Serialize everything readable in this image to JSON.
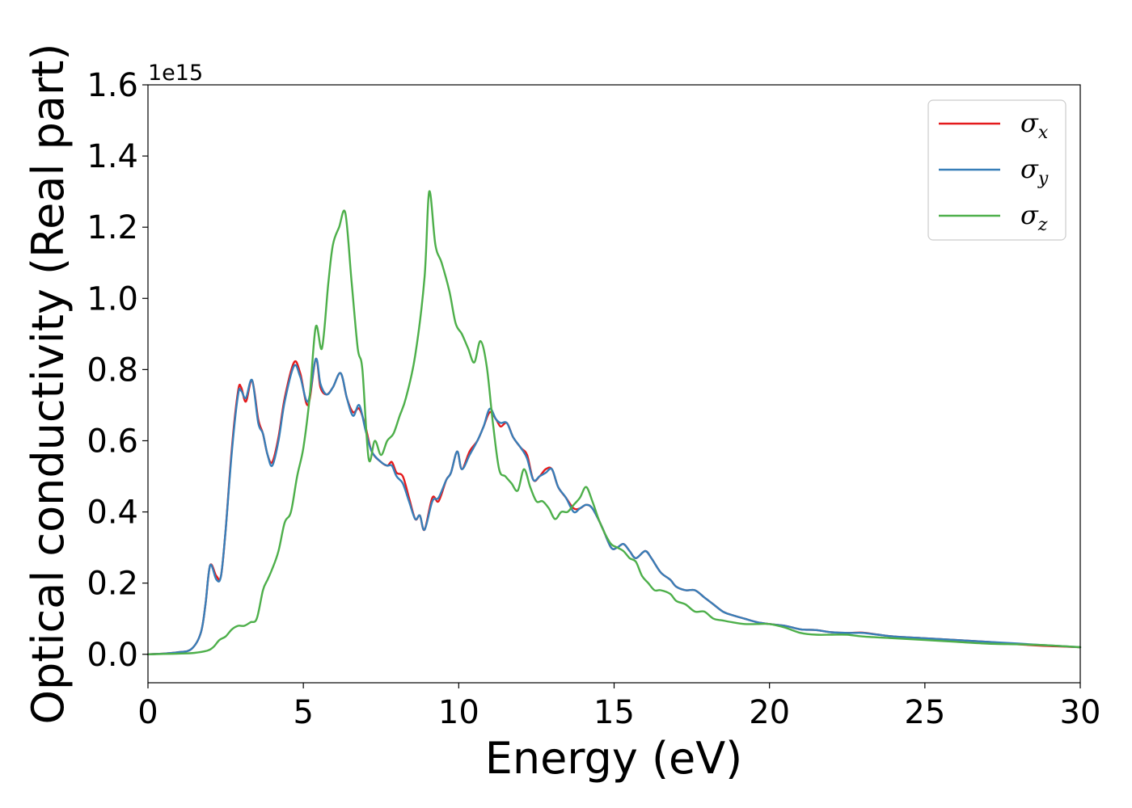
{
  "chart_data": {
    "type": "line",
    "title": "",
    "xlabel": "Energy (eV)",
    "ylabel": "Optical conductivity (Real part)",
    "y_offset_label": "1e15",
    "xlim": [
      0,
      30
    ],
    "ylim": [
      -0.08,
      1.6
    ],
    "x_ticks": [
      0,
      5,
      10,
      15,
      20,
      25,
      30
    ],
    "x_tick_labels": [
      "0",
      "5",
      "10",
      "15",
      "20",
      "25",
      "30"
    ],
    "y_ticks": [
      0.0,
      0.2,
      0.4,
      0.6,
      0.8,
      1.0,
      1.2,
      1.4,
      1.6
    ],
    "y_tick_labels": [
      "0.0",
      "0.2",
      "0.4",
      "0.6",
      "0.8",
      "1.0",
      "1.2",
      "1.4",
      "1.6"
    ],
    "grid": false,
    "legend_position": "top-right",
    "series": [
      {
        "name": "σx",
        "symbol": "σ",
        "subscript": "x",
        "color": "#e41a1c",
        "x": [
          0,
          0.5,
          1.0,
          1.4,
          1.7,
          1.85,
          2.0,
          2.2,
          2.35,
          2.5,
          2.7,
          2.9,
          3.0,
          3.15,
          3.35,
          3.55,
          3.7,
          3.85,
          4.0,
          4.2,
          4.4,
          4.7,
          4.9,
          5.15,
          5.4,
          5.55,
          5.75,
          5.95,
          6.2,
          6.4,
          6.6,
          6.8,
          7.0,
          7.2,
          7.5,
          7.7,
          7.85,
          8.0,
          8.2,
          8.4,
          8.6,
          8.75,
          8.9,
          9.15,
          9.35,
          9.6,
          9.75,
          9.95,
          10.1,
          10.35,
          10.6,
          10.8,
          11.0,
          11.2,
          11.35,
          11.55,
          11.75,
          12.0,
          12.2,
          12.4,
          12.6,
          12.8,
          13.0,
          13.2,
          13.45,
          13.7,
          13.9,
          14.1,
          14.3,
          14.6,
          14.9,
          15.1,
          15.3,
          15.5,
          15.7,
          16.0,
          16.2,
          16.5,
          16.8,
          17.0,
          17.3,
          17.6,
          17.9,
          18.2,
          18.5,
          18.8,
          19.2,
          19.6,
          20.0,
          20.5,
          21.0,
          21.5,
          22.0,
          22.5,
          23.0,
          23.5,
          24.0,
          25.0,
          26.0,
          27.0,
          28.0,
          29.0,
          30.0
        ],
        "values": [
          0.0,
          0.002,
          0.006,
          0.015,
          0.06,
          0.14,
          0.25,
          0.22,
          0.22,
          0.35,
          0.58,
          0.74,
          0.75,
          0.71,
          0.77,
          0.66,
          0.62,
          0.56,
          0.54,
          0.61,
          0.72,
          0.82,
          0.79,
          0.7,
          0.83,
          0.75,
          0.73,
          0.75,
          0.79,
          0.72,
          0.68,
          0.69,
          0.64,
          0.57,
          0.54,
          0.53,
          0.54,
          0.51,
          0.5,
          0.44,
          0.38,
          0.39,
          0.35,
          0.44,
          0.43,
          0.49,
          0.51,
          0.57,
          0.52,
          0.57,
          0.6,
          0.64,
          0.68,
          0.66,
          0.64,
          0.65,
          0.61,
          0.58,
          0.56,
          0.49,
          0.5,
          0.52,
          0.52,
          0.47,
          0.44,
          0.41,
          0.41,
          0.42,
          0.41,
          0.36,
          0.3,
          0.3,
          0.31,
          0.29,
          0.27,
          0.29,
          0.27,
          0.23,
          0.21,
          0.19,
          0.18,
          0.18,
          0.16,
          0.14,
          0.12,
          0.11,
          0.1,
          0.09,
          0.085,
          0.08,
          0.07,
          0.068,
          0.062,
          0.06,
          0.061,
          0.055,
          0.05,
          0.045,
          0.04,
          0.035,
          0.028,
          0.023,
          0.02
        ]
      },
      {
        "name": "σy",
        "symbol": "σ",
        "subscript": "y",
        "color": "#377eb8",
        "x": [
          0,
          0.5,
          1.0,
          1.4,
          1.7,
          1.85,
          2.0,
          2.2,
          2.35,
          2.5,
          2.7,
          2.9,
          3.0,
          3.15,
          3.35,
          3.55,
          3.7,
          3.85,
          4.0,
          4.2,
          4.4,
          4.7,
          4.9,
          5.15,
          5.4,
          5.55,
          5.75,
          5.95,
          6.2,
          6.4,
          6.6,
          6.8,
          7.0,
          7.2,
          7.5,
          7.7,
          7.85,
          8.0,
          8.2,
          8.4,
          8.6,
          8.75,
          8.9,
          9.15,
          9.35,
          9.6,
          9.75,
          9.95,
          10.1,
          10.35,
          10.6,
          10.8,
          11.0,
          11.2,
          11.35,
          11.55,
          11.75,
          12.0,
          12.2,
          12.4,
          12.6,
          12.8,
          13.0,
          13.2,
          13.45,
          13.7,
          13.9,
          14.1,
          14.3,
          14.6,
          14.9,
          15.1,
          15.3,
          15.5,
          15.7,
          16.0,
          16.2,
          16.5,
          16.8,
          17.0,
          17.3,
          17.6,
          17.9,
          18.2,
          18.5,
          18.8,
          19.2,
          19.6,
          20.0,
          20.5,
          21.0,
          21.5,
          22.0,
          22.5,
          23.0,
          23.5,
          24.0,
          25.0,
          26.0,
          27.0,
          28.0,
          29.0,
          30.0
        ],
        "values": [
          0.0,
          0.002,
          0.006,
          0.015,
          0.06,
          0.14,
          0.25,
          0.21,
          0.22,
          0.35,
          0.57,
          0.73,
          0.74,
          0.72,
          0.77,
          0.65,
          0.62,
          0.56,
          0.53,
          0.6,
          0.71,
          0.81,
          0.78,
          0.71,
          0.83,
          0.76,
          0.73,
          0.75,
          0.79,
          0.72,
          0.67,
          0.7,
          0.63,
          0.57,
          0.54,
          0.53,
          0.53,
          0.5,
          0.48,
          0.43,
          0.38,
          0.39,
          0.35,
          0.43,
          0.44,
          0.49,
          0.51,
          0.57,
          0.52,
          0.56,
          0.6,
          0.64,
          0.69,
          0.66,
          0.65,
          0.65,
          0.61,
          0.58,
          0.55,
          0.49,
          0.5,
          0.51,
          0.52,
          0.47,
          0.44,
          0.4,
          0.41,
          0.42,
          0.41,
          0.36,
          0.3,
          0.3,
          0.31,
          0.29,
          0.27,
          0.29,
          0.27,
          0.23,
          0.21,
          0.19,
          0.18,
          0.18,
          0.16,
          0.14,
          0.12,
          0.11,
          0.1,
          0.09,
          0.085,
          0.08,
          0.07,
          0.068,
          0.062,
          0.06,
          0.06,
          0.055,
          0.05,
          0.045,
          0.04,
          0.035,
          0.03,
          0.025,
          0.02
        ]
      },
      {
        "name": "σz",
        "symbol": "σ",
        "subscript": "z",
        "color": "#4daf4a",
        "x": [
          0,
          0.5,
          1.0,
          1.5,
          1.9,
          2.1,
          2.3,
          2.5,
          2.7,
          2.9,
          3.1,
          3.3,
          3.5,
          3.7,
          3.85,
          4.0,
          4.2,
          4.4,
          4.6,
          4.8,
          5.0,
          5.2,
          5.4,
          5.6,
          5.8,
          5.95,
          6.15,
          6.35,
          6.55,
          6.75,
          6.9,
          7.1,
          7.3,
          7.5,
          7.7,
          7.9,
          8.1,
          8.3,
          8.6,
          8.9,
          9.05,
          9.25,
          9.45,
          9.7,
          9.9,
          10.1,
          10.3,
          10.5,
          10.7,
          10.9,
          11.1,
          11.3,
          11.5,
          11.7,
          11.9,
          12.1,
          12.3,
          12.5,
          12.7,
          12.9,
          13.1,
          13.3,
          13.5,
          13.7,
          13.9,
          14.1,
          14.3,
          14.5,
          14.7,
          14.9,
          15.1,
          15.3,
          15.5,
          15.7,
          15.9,
          16.1,
          16.3,
          16.5,
          16.8,
          17.0,
          17.3,
          17.6,
          17.9,
          18.2,
          18.5,
          18.8,
          19.2,
          19.6,
          20.0,
          20.5,
          21.0,
          21.5,
          22.0,
          22.5,
          23.0,
          24.0,
          25.0,
          26.0,
          27.0,
          28.0,
          29.0,
          30.0
        ],
        "values": [
          0.0,
          0.001,
          0.002,
          0.004,
          0.01,
          0.02,
          0.04,
          0.05,
          0.07,
          0.08,
          0.08,
          0.09,
          0.1,
          0.18,
          0.21,
          0.24,
          0.29,
          0.37,
          0.4,
          0.5,
          0.58,
          0.72,
          0.92,
          0.86,
          1.04,
          1.15,
          1.2,
          1.24,
          1.05,
          0.86,
          0.8,
          0.55,
          0.6,
          0.56,
          0.6,
          0.62,
          0.67,
          0.72,
          0.84,
          1.06,
          1.3,
          1.15,
          1.1,
          1.02,
          0.93,
          0.9,
          0.86,
          0.82,
          0.88,
          0.81,
          0.65,
          0.52,
          0.5,
          0.48,
          0.46,
          0.52,
          0.47,
          0.43,
          0.43,
          0.41,
          0.38,
          0.4,
          0.4,
          0.42,
          0.44,
          0.47,
          0.43,
          0.38,
          0.34,
          0.31,
          0.3,
          0.29,
          0.27,
          0.26,
          0.22,
          0.2,
          0.18,
          0.18,
          0.17,
          0.15,
          0.14,
          0.12,
          0.12,
          0.1,
          0.095,
          0.09,
          0.085,
          0.085,
          0.085,
          0.075,
          0.06,
          0.055,
          0.055,
          0.055,
          0.05,
          0.045,
          0.04,
          0.035,
          0.03,
          0.028,
          0.025,
          0.02
        ]
      }
    ]
  }
}
